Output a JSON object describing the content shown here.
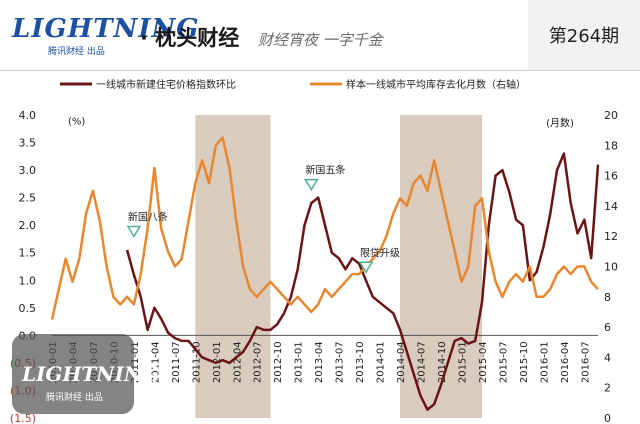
{
  "header": {
    "logo_word": "LIGHTNING",
    "logo_sub": "腾讯财经 出品",
    "brand": "· 枕头财经",
    "slogan": "财经宵夜 一字千金",
    "issue": "第264期"
  },
  "watermark": {
    "word": "LIGHTNING",
    "sub": "腾讯财经 出品"
  },
  "chart_data": {
    "type": "line",
    "left_axis_unit": "(%)",
    "right_axis_unit": "(月数)",
    "ylim_left": [
      -1.5,
      4.0
    ],
    "yticks_left": [
      -1.5,
      -1.0,
      -0.5,
      0.0,
      0.5,
      1.0,
      1.5,
      2.0,
      2.5,
      3.0,
      3.5,
      4.0
    ],
    "ytick_labels_left": [
      "(1.5)",
      "(1.0)",
      "(0.5)",
      "0.0",
      "0.5",
      "1.0",
      "1.5",
      "2.0",
      "2.5",
      "3.0",
      "3.5",
      "4.0"
    ],
    "ylim_right": [
      0,
      20
    ],
    "yticks_right": [
      0,
      2,
      4,
      6,
      8,
      10,
      12,
      14,
      16,
      18,
      20
    ],
    "x_start": "2010-01",
    "x_end": "2016-09",
    "x_ticks": [
      "2010-01",
      "2010-04",
      "2010-07",
      "2010-10",
      "2011-01",
      "2011-04",
      "2011-07",
      "2011-10",
      "2012-01",
      "2012-04",
      "2012-07",
      "2012-10",
      "2013-01",
      "2013-04",
      "2013-07",
      "2013-10",
      "2014-01",
      "2014-04",
      "2014-07",
      "2014-10",
      "2015-01",
      "2015-04",
      "2015-07",
      "2015-10",
      "2016-01",
      "2016-04",
      "2016-07"
    ],
    "shaded_periods": [
      {
        "start": "2011-10",
        "end": "2012-09"
      },
      {
        "start": "2014-04",
        "end": "2015-04"
      }
    ],
    "series": [
      {
        "name": "一线城市新建住宅价格指数环比",
        "axis": "left",
        "color": "#6b1418",
        "points": [
          [
            "2010-12",
            1.55
          ],
          [
            "2011-01",
            1.1
          ],
          [
            "2011-02",
            0.7
          ],
          [
            "2011-03",
            0.1
          ],
          [
            "2011-04",
            0.5
          ],
          [
            "2011-05",
            0.3
          ],
          [
            "2011-06",
            0.05
          ],
          [
            "2011-07",
            -0.05
          ],
          [
            "2011-08",
            -0.1
          ],
          [
            "2011-09",
            -0.1
          ],
          [
            "2011-10",
            -0.25
          ],
          [
            "2011-11",
            -0.4
          ],
          [
            "2011-12",
            -0.45
          ],
          [
            "2012-01",
            -0.5
          ],
          [
            "2012-02",
            -0.45
          ],
          [
            "2012-03",
            -0.5
          ],
          [
            "2012-04",
            -0.4
          ],
          [
            "2012-05",
            -0.3
          ],
          [
            "2012-06",
            -0.1
          ],
          [
            "2012-07",
            0.15
          ],
          [
            "2012-08",
            0.1
          ],
          [
            "2012-09",
            0.1
          ],
          [
            "2012-10",
            0.2
          ],
          [
            "2012-11",
            0.4
          ],
          [
            "2012-12",
            0.7
          ],
          [
            "2013-01",
            1.2
          ],
          [
            "2013-02",
            2.0
          ],
          [
            "2013-03",
            2.4
          ],
          [
            "2013-04",
            2.5
          ],
          [
            "2013-05",
            2.0
          ],
          [
            "2013-06",
            1.5
          ],
          [
            "2013-07",
            1.4
          ],
          [
            "2013-08",
            1.2
          ],
          [
            "2013-09",
            1.4
          ],
          [
            "2013-10",
            1.3
          ],
          [
            "2013-11",
            1.0
          ],
          [
            "2013-12",
            0.7
          ],
          [
            "2014-01",
            0.6
          ],
          [
            "2014-02",
            0.5
          ],
          [
            "2014-03",
            0.4
          ],
          [
            "2014-04",
            0.1
          ],
          [
            "2014-05",
            -0.3
          ],
          [
            "2014-06",
            -0.7
          ],
          [
            "2014-07",
            -1.1
          ],
          [
            "2014-08",
            -1.35
          ],
          [
            "2014-09",
            -1.25
          ],
          [
            "2014-10",
            -0.9
          ],
          [
            "2014-11",
            -0.5
          ],
          [
            "2014-12",
            -0.1
          ],
          [
            "2015-01",
            -0.05
          ],
          [
            "2015-02",
            -0.15
          ],
          [
            "2015-03",
            -0.1
          ],
          [
            "2015-04",
            0.6
          ],
          [
            "2015-05",
            2.0
          ],
          [
            "2015-06",
            2.9
          ],
          [
            "2015-07",
            3.0
          ],
          [
            "2015-08",
            2.6
          ],
          [
            "2015-09",
            2.1
          ],
          [
            "2015-10",
            2.0
          ],
          [
            "2015-11",
            1.0
          ],
          [
            "2015-12",
            1.15
          ],
          [
            "2016-01",
            1.6
          ],
          [
            "2016-02",
            2.2
          ],
          [
            "2016-03",
            3.0
          ],
          [
            "2016-04",
            3.3
          ],
          [
            "2016-05",
            2.4
          ],
          [
            "2016-06",
            1.85
          ],
          [
            "2016-07",
            2.1
          ],
          [
            "2016-08",
            1.4
          ],
          [
            "2016-09",
            3.1
          ]
        ]
      },
      {
        "name": "样本一线城市平均库存去化月数（右轴）",
        "axis": "right",
        "color": "#e8872f",
        "points": [
          [
            "2010-01",
            6.5
          ],
          [
            "2010-02",
            8.5
          ],
          [
            "2010-03",
            10.5
          ],
          [
            "2010-04",
            9.0
          ],
          [
            "2010-05",
            10.5
          ],
          [
            "2010-06",
            13.5
          ],
          [
            "2010-07",
            15.0
          ],
          [
            "2010-08",
            13.0
          ],
          [
            "2010-09",
            10.0
          ],
          [
            "2010-10",
            8.0
          ],
          [
            "2010-11",
            7.5
          ],
          [
            "2010-12",
            8.0
          ],
          [
            "2011-01",
            7.5
          ],
          [
            "2011-02",
            9.5
          ],
          [
            "2011-03",
            12.5
          ],
          [
            "2011-04",
            16.5
          ],
          [
            "2011-05",
            12.5
          ],
          [
            "2011-06",
            11.0
          ],
          [
            "2011-07",
            10.0
          ],
          [
            "2011-08",
            10.5
          ],
          [
            "2011-09",
            13.0
          ],
          [
            "2011-10",
            15.5
          ],
          [
            "2011-11",
            17.0
          ],
          [
            "2011-12",
            15.5
          ],
          [
            "2012-01",
            18.0
          ],
          [
            "2012-02",
            18.5
          ],
          [
            "2012-03",
            16.5
          ],
          [
            "2012-04",
            13.0
          ],
          [
            "2012-05",
            10.0
          ],
          [
            "2012-06",
            8.5
          ],
          [
            "2012-07",
            8.0
          ],
          [
            "2012-08",
            8.5
          ],
          [
            "2012-09",
            9.0
          ],
          [
            "2012-10",
            8.5
          ],
          [
            "2012-11",
            8.0
          ],
          [
            "2012-12",
            7.5
          ],
          [
            "2013-01",
            8.0
          ],
          [
            "2013-02",
            7.5
          ],
          [
            "2013-03",
            7.0
          ],
          [
            "2013-04",
            7.5
          ],
          [
            "2013-05",
            8.5
          ],
          [
            "2013-06",
            8.0
          ],
          [
            "2013-07",
            8.5
          ],
          [
            "2013-08",
            9.0
          ],
          [
            "2013-09",
            9.5
          ],
          [
            "2013-10",
            9.5
          ],
          [
            "2013-11",
            10.0
          ],
          [
            "2013-12",
            10.5
          ],
          [
            "2014-01",
            11.0
          ],
          [
            "2014-02",
            12.0
          ],
          [
            "2014-03",
            13.5
          ],
          [
            "2014-04",
            14.5
          ],
          [
            "2014-05",
            14.0
          ],
          [
            "2014-06",
            15.5
          ],
          [
            "2014-07",
            16.0
          ],
          [
            "2014-08",
            15.0
          ],
          [
            "2014-09",
            17.0
          ],
          [
            "2014-10",
            15.0
          ],
          [
            "2014-11",
            13.0
          ],
          [
            "2014-12",
            11.0
          ],
          [
            "2015-01",
            9.0
          ],
          [
            "2015-02",
            10.0
          ],
          [
            "2015-03",
            14.0
          ],
          [
            "2015-04",
            14.5
          ],
          [
            "2015-05",
            11.0
          ],
          [
            "2015-06",
            9.0
          ],
          [
            "2015-07",
            8.0
          ],
          [
            "2015-08",
            9.0
          ],
          [
            "2015-09",
            9.5
          ],
          [
            "2015-10",
            9.0
          ],
          [
            "2015-11",
            10.0
          ],
          [
            "2015-12",
            8.0
          ],
          [
            "2016-01",
            8.0
          ],
          [
            "2016-02",
            8.5
          ],
          [
            "2016-03",
            9.5
          ],
          [
            "2016-04",
            10.0
          ],
          [
            "2016-05",
            9.5
          ],
          [
            "2016-06",
            10.0
          ],
          [
            "2016-07",
            10.0
          ],
          [
            "2016-08",
            9.0
          ],
          [
            "2016-09",
            8.5
          ]
        ]
      }
    ],
    "annotations": [
      {
        "label": "新国八条",
        "x": "2011-01",
        "y": 1.65
      },
      {
        "label": "新国五条",
        "x": "2013-03",
        "y": 2.5
      },
      {
        "label": "限贷升级",
        "x": "2013-11",
        "y": 1.0
      }
    ],
    "marker_color": "#4fb08a"
  }
}
